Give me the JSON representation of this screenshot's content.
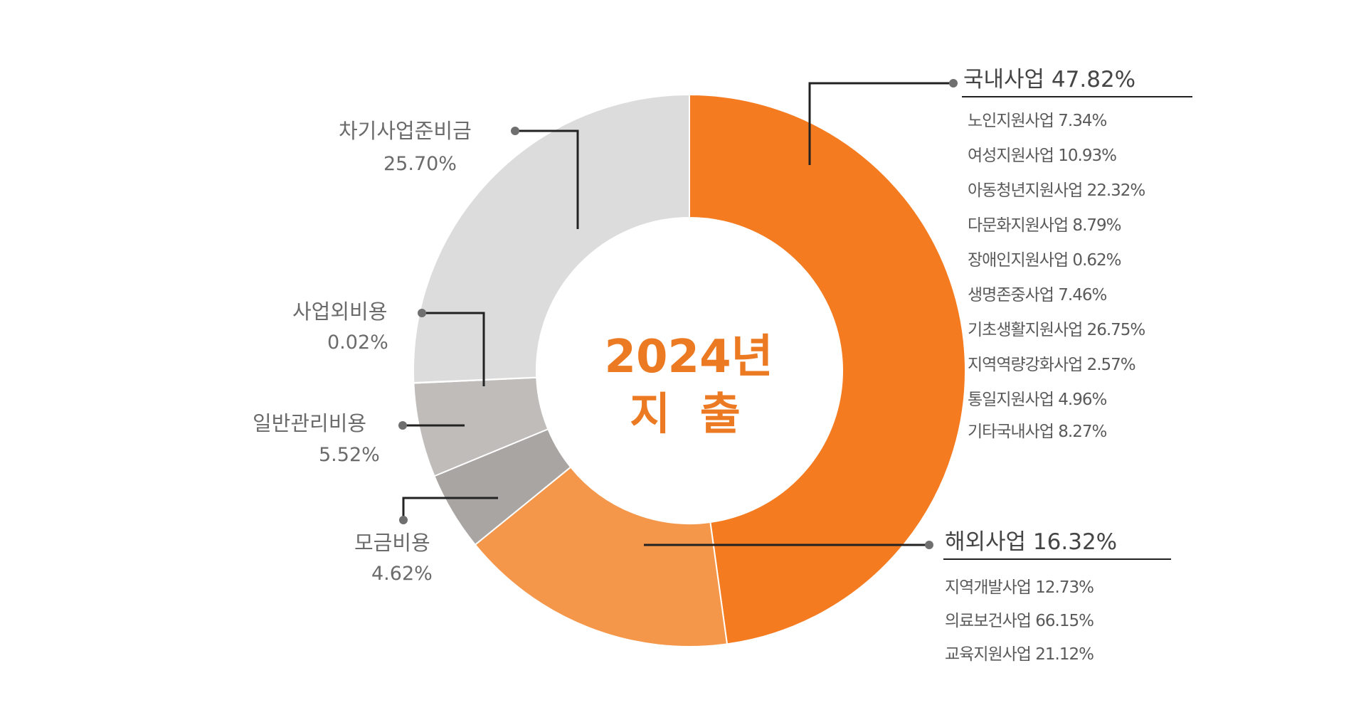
{
  "chart_data": {
    "type": "donut",
    "center_text": {
      "year": "2024년",
      "label": "지 출"
    },
    "slices": [
      {
        "key": "domestic",
        "name": "국내사업",
        "value": 47.82,
        "display": "47.82%",
        "color": "#f47b20"
      },
      {
        "key": "overseas",
        "name": "해외사업",
        "value": 16.32,
        "display": "16.32%",
        "color": "#f5974a"
      },
      {
        "key": "fundraising",
        "name": "모금비용",
        "value": 4.62,
        "display": "4.62%",
        "color": "#a9a5a3"
      },
      {
        "key": "general_admin",
        "name": "일반관리비용",
        "value": 5.52,
        "display": "5.52%",
        "color": "#c0bcba"
      },
      {
        "key": "non_business",
        "name": "사업외비용",
        "value": 0.02,
        "display": "0.02%",
        "color": "#c9c6c4"
      },
      {
        "key": "reserve",
        "name": "차기사업준비금",
        "value": 25.7,
        "display": "25.70%",
        "color": "#dcdcdd"
      }
    ],
    "domestic_breakdown": [
      {
        "name": "노인지원사업",
        "value": 7.34,
        "display": "7.34%"
      },
      {
        "name": "여성지원사업",
        "value": 10.93,
        "display": "10.93%"
      },
      {
        "name": "아동청년지원사업",
        "value": 22.32,
        "display": "22.32%"
      },
      {
        "name": "다문화지원사업",
        "value": 8.79,
        "display": "8.79%"
      },
      {
        "name": "장애인지원사업",
        "value": 0.62,
        "display": "0.62%"
      },
      {
        "name": "생명존중사업",
        "value": 7.46,
        "display": "7.46%"
      },
      {
        "name": "기초생활지원사업",
        "value": 26.75,
        "display": "26.75%"
      },
      {
        "name": "지역역량강화사업",
        "value": 2.57,
        "display": "2.57%"
      },
      {
        "name": "통일지원사업",
        "value": 4.96,
        "display": "4.96%"
      },
      {
        "name": "기타국내사업",
        "value": 8.27,
        "display": "8.27%"
      }
    ],
    "overseas_breakdown": [
      {
        "name": "지역개발사업",
        "value": 12.73,
        "display": "12.73%"
      },
      {
        "name": "의료보건사업",
        "value": 66.15,
        "display": "66.15%"
      },
      {
        "name": "교육지원사업",
        "value": 21.12,
        "display": "21.12%"
      }
    ],
    "labels": {
      "domestic_title": "국내사업 47.82%",
      "overseas_title": "해외사업 16.32%",
      "domestic_items": [
        "노인지원사업 7.34%",
        "여성지원사업 10.93%",
        "아동청년지원사업 22.32%",
        "다문화지원사업 8.79%",
        "장애인지원사업 0.62%",
        "생명존중사업 7.46%",
        "기초생활지원사업 26.75%",
        "지역역량강화사업 2.57%",
        "통일지원사업 4.96%",
        "기타국내사업 8.27%"
      ],
      "overseas_items": [
        "지역개발사업 12.73%",
        "의료보건사업 66.15%",
        "교육지원사업 21.12%"
      ]
    },
    "colors": {
      "center_text": "#ec7a22",
      "connector": "#222222",
      "label_text": "#6b6b6b",
      "dot": "#6f6f6f"
    }
  }
}
